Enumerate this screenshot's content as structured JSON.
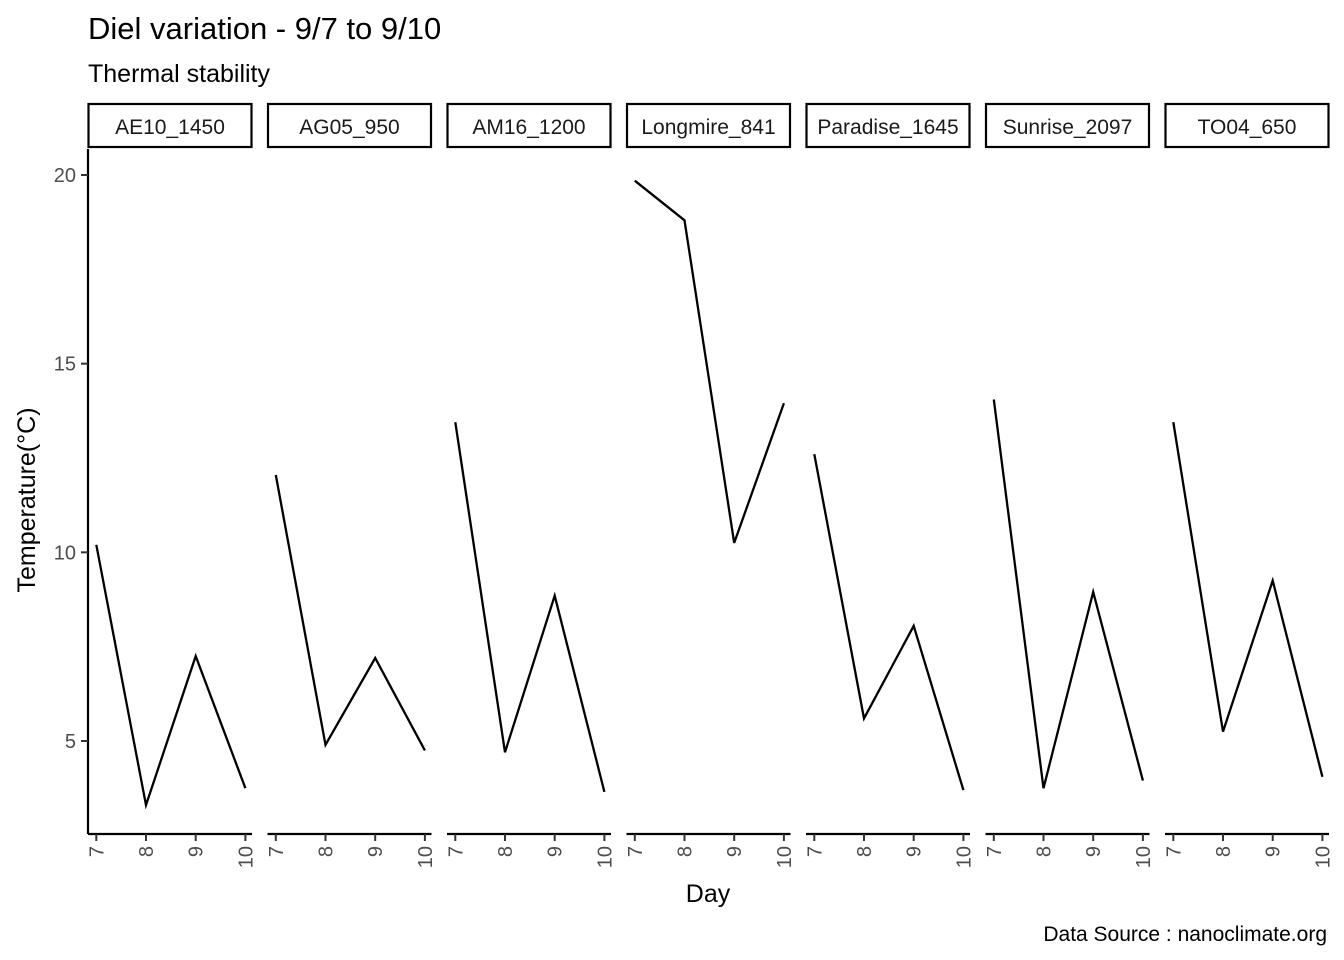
{
  "chart_data": {
    "type": "line",
    "title": "Diel variation - 9/7 to 9/10",
    "subtitle": "Thermal stability",
    "xlabel": "Day",
    "ylabel": "Temperature(°C)",
    "caption": "Data Source : nanoclimate.org",
    "x": [
      7,
      8,
      9,
      10
    ],
    "x_tick_labels": [
      "7",
      "8",
      "9",
      "10"
    ],
    "y_ticks": [
      5,
      10,
      15,
      20
    ],
    "ylim": [
      2.5,
      20.7
    ],
    "grid": false,
    "line_color": "#000000",
    "panels": [
      {
        "name": "AE10_1450",
        "values": [
          10.2,
          3.3,
          7.25,
          3.75
        ]
      },
      {
        "name": "AG05_950",
        "values": [
          12.05,
          4.9,
          7.2,
          4.75
        ]
      },
      {
        "name": "AM16_1200",
        "values": [
          13.45,
          4.7,
          8.85,
          3.65
        ]
      },
      {
        "name": "Longmire_841",
        "values": [
          19.85,
          18.8,
          10.25,
          13.95
        ]
      },
      {
        "name": "Paradise_1645",
        "values": [
          12.6,
          5.6,
          8.05,
          3.7
        ]
      },
      {
        "name": "Sunrise_2097",
        "values": [
          14.05,
          3.75,
          8.95,
          3.95
        ]
      },
      {
        "name": "TO04_650",
        "values": [
          13.45,
          5.25,
          9.25,
          4.05
        ]
      }
    ]
  }
}
